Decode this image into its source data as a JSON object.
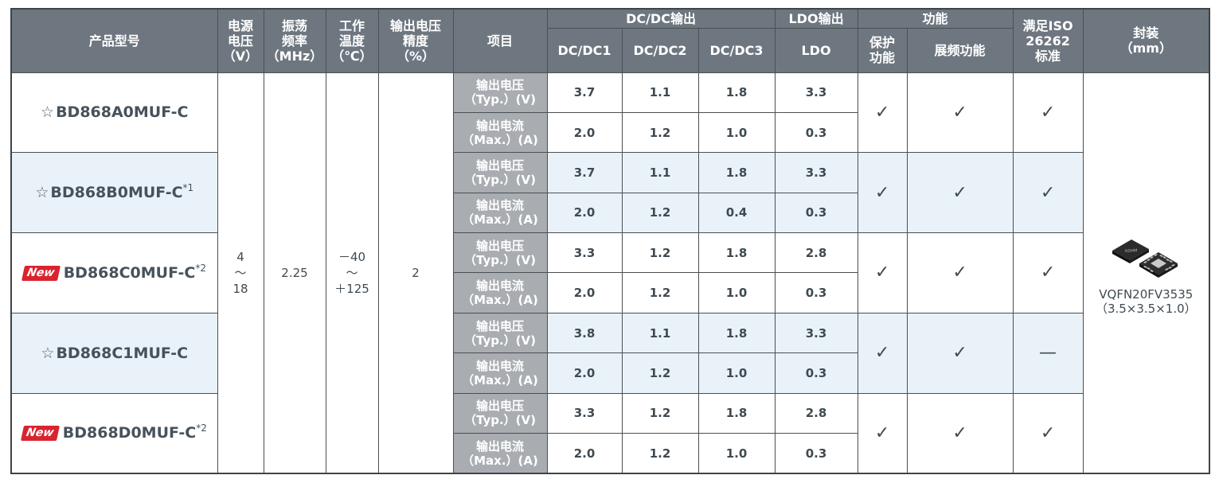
{
  "headers": {
    "model": "产品型号",
    "supply_voltage": [
      "电源",
      "电压",
      "（V）"
    ],
    "osc_freq": [
      "振荡",
      "频率",
      "（MHz）"
    ],
    "op_temp": [
      "工作",
      "温度",
      "（℃）"
    ],
    "accuracy": [
      "输出电压",
      "精度",
      "（%）"
    ],
    "item": "项目",
    "dcdc_group": "DC/DC输出",
    "dcdc1": "DC/DC1",
    "dcdc2": "DC/DC2",
    "dcdc3": "DC/DC3",
    "ldo_group": "LDO输出",
    "ldo": "LDO",
    "func_group": "功能",
    "protect": [
      "保护",
      "功能"
    ],
    "spread": "展频功能",
    "iso": [
      "满足ISO",
      "26262",
      "标准"
    ],
    "package": [
      "封装",
      "（mm）"
    ]
  },
  "common": {
    "supply_voltage": [
      "4",
      "～",
      "18"
    ],
    "osc_freq": "2.25",
    "op_temp": [
      "－40",
      "～",
      "＋125"
    ],
    "accuracy": "2",
    "package_name": "VQFN20FV3535",
    "package_dims": "（3.5×3.5×1.0）",
    "chip_icon": "ic-package-icon"
  },
  "item_labels": {
    "voltage": [
      "输出电压",
      "（Typ.）(V)"
    ],
    "current": [
      "输出电流",
      "（Max.）(A)"
    ]
  },
  "products": [
    {
      "prefix": "☆",
      "badge": "",
      "name": "BD868A0MUF-C",
      "note": "",
      "voltage": [
        "3.7",
        "1.1",
        "1.8",
        "3.3"
      ],
      "current": [
        "2.0",
        "1.2",
        "1.0",
        "0.3"
      ],
      "protect": "✓",
      "spread": "✓",
      "iso": "✓"
    },
    {
      "prefix": "☆",
      "badge": "",
      "name": "BD868B0MUF-C",
      "note": "*1",
      "voltage": [
        "3.7",
        "1.1",
        "1.8",
        "3.3"
      ],
      "current": [
        "2.0",
        "1.2",
        "0.4",
        "0.3"
      ],
      "protect": "✓",
      "spread": "✓",
      "iso": "✓"
    },
    {
      "prefix": "",
      "badge": "New",
      "name": "BD868C0MUF-C",
      "note": "*2",
      "voltage": [
        "3.3",
        "1.2",
        "1.8",
        "2.8"
      ],
      "current": [
        "2.0",
        "1.2",
        "1.0",
        "0.3"
      ],
      "protect": "✓",
      "spread": "✓",
      "iso": "✓"
    },
    {
      "prefix": "☆",
      "badge": "",
      "name": "BD868C1MUF-C",
      "note": "",
      "voltage": [
        "3.8",
        "1.1",
        "1.8",
        "3.3"
      ],
      "current": [
        "2.0",
        "1.2",
        "1.0",
        "0.3"
      ],
      "protect": "✓",
      "spread": "✓",
      "iso": "—"
    },
    {
      "prefix": "",
      "badge": "New",
      "name": "BD868D0MUF-C",
      "note": "*2",
      "voltage": [
        "3.3",
        "1.2",
        "1.8",
        "2.8"
      ],
      "current": [
        "2.0",
        "1.2",
        "1.0",
        "0.3"
      ],
      "protect": "✓",
      "spread": "✓",
      "iso": "✓"
    }
  ],
  "colors": {
    "header_bg": "#6e7780",
    "item_bg": "#a9adb1",
    "row_shade": "#e9f2f8",
    "new_badge": "#d9242f",
    "text": "#3f4a52"
  }
}
